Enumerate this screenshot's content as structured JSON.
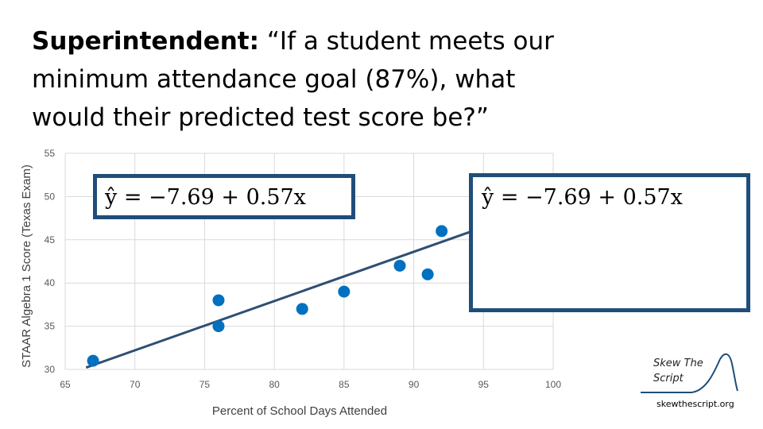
{
  "question": {
    "speaker": "Superintendent:",
    "text": " “If a student meets our minimum attendance goal (87%), what would their predicted test score be?”"
  },
  "equation": {
    "left": "ŷ = −7.69 + 0.57x",
    "right": "ŷ = −7.69 + 0.57x"
  },
  "logo": {
    "line1": "Skew The",
    "line2": "Script",
    "url": "skewthescript.org"
  },
  "colors": {
    "points": "#0070c0",
    "regression_line": "#2f4f73",
    "box_border": "#1f4e79"
  },
  "chart_data": {
    "type": "scatter",
    "xlabel": "Percent of School Days Attended",
    "ylabel": "STAAR Algebra 1 Score (Texas Exam)",
    "xlim": [
      65,
      100
    ],
    "ylim": [
      30,
      55
    ],
    "xticks": [
      65,
      70,
      75,
      80,
      85,
      90,
      95,
      100
    ],
    "yticks": [
      30,
      35,
      40,
      45,
      50,
      55
    ],
    "grid": true,
    "points": [
      {
        "x": 67,
        "y": 31
      },
      {
        "x": 76,
        "y": 38
      },
      {
        "x": 76,
        "y": 35
      },
      {
        "x": 82,
        "y": 37
      },
      {
        "x": 85,
        "y": 39
      },
      {
        "x": 89,
        "y": 42
      },
      {
        "x": 91,
        "y": 41
      },
      {
        "x": 92,
        "y": 46
      }
    ],
    "regression": {
      "intercept": -7.69,
      "slope": 0.57,
      "x_start": 66.5,
      "x_end": 95
    }
  }
}
